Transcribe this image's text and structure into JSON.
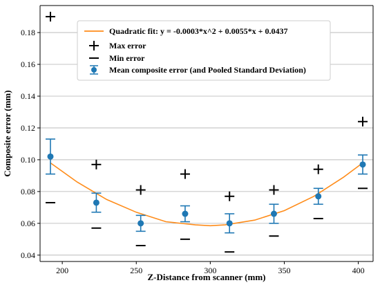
{
  "colors": {
    "fit": "#ff8c1a",
    "mean": "#1f78b4",
    "marker": "#000000",
    "grid": "#b0b0b0"
  },
  "chart_data": {
    "type": "scatter",
    "xlabel": "Z-Distance from scanner (mm)",
    "ylabel": "Composite error (mm)",
    "xlim": [
      185,
      410
    ],
    "ylim": [
      0.036,
      0.197
    ],
    "xticks": [
      200,
      250,
      300,
      350,
      400
    ],
    "yticks": [
      0.04,
      0.06,
      0.08,
      0.1,
      0.12,
      0.14,
      0.16,
      0.18
    ],
    "grid": "horizontal",
    "legend_position": "top",
    "x": [
      192,
      223,
      253,
      283,
      313,
      343,
      373,
      403
    ],
    "series": [
      {
        "name": "Quadratic fit: y = -0.0003*x^2 + 0.0055*x + 0.0437",
        "kind": "line",
        "points": [
          [
            192,
            0.098
          ],
          [
            210,
            0.086
          ],
          [
            230,
            0.075
          ],
          [
            250,
            0.067
          ],
          [
            270,
            0.061
          ],
          [
            290,
            0.059
          ],
          [
            300,
            0.0585
          ],
          [
            310,
            0.059
          ],
          [
            330,
            0.062
          ],
          [
            350,
            0.068
          ],
          [
            370,
            0.077
          ],
          [
            390,
            0.089
          ],
          [
            403,
            0.098
          ]
        ]
      },
      {
        "name": "Max error",
        "kind": "plus-marker",
        "values": [
          0.19,
          0.097,
          0.081,
          0.091,
          0.077,
          0.081,
          0.094,
          0.124
        ]
      },
      {
        "name": "Min error",
        "kind": "dash-marker",
        "values": [
          0.073,
          0.057,
          0.046,
          0.05,
          0.042,
          0.052,
          0.063,
          0.082
        ]
      },
      {
        "name": "Mean composite error (and Pooled Standard Deviation)",
        "kind": "errorbar",
        "values": [
          0.102,
          0.073,
          0.06,
          0.066,
          0.06,
          0.066,
          0.077,
          0.097
        ],
        "errors": [
          0.011,
          0.006,
          0.005,
          0.005,
          0.006,
          0.006,
          0.005,
          0.006
        ]
      }
    ]
  }
}
